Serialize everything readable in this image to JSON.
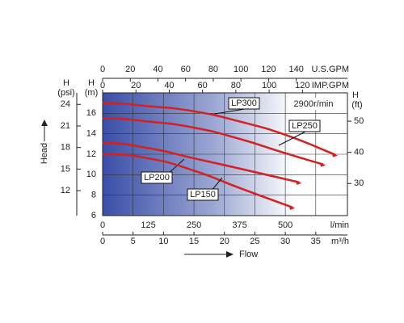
{
  "chart_data": {
    "type": "line",
    "x_label": "Flow",
    "y_label": "Head",
    "annotation": "2900r/min",
    "x_unit": "l/min",
    "xlim": [
      0,
      670
    ],
    "xticks": [
      0,
      125,
      250,
      375,
      500
    ],
    "y_title": "H",
    "y_unit": "(m)",
    "ylim": [
      6,
      18
    ],
    "yticks": [
      6,
      8,
      10,
      12,
      14,
      16
    ],
    "grid": true,
    "axes": {
      "m3h": {
        "label": "m³/h",
        "xlim": [
          0,
          40.2
        ],
        "xticks": [
          0,
          5,
          10,
          15,
          20,
          25,
          30,
          35
        ]
      },
      "usgpm": {
        "label": "U.S.GPM",
        "xlim": [
          0,
          177
        ],
        "xticks": [
          0,
          20,
          40,
          60,
          80,
          100,
          120,
          140
        ]
      },
      "impgpm": {
        "label": "IMP.GPM",
        "xlim": [
          0,
          147
        ],
        "xticks": [
          0,
          20,
          40,
          60,
          80,
          100,
          120
        ]
      },
      "psi": {
        "title": "H",
        "unit": "(psi)",
        "ylim": [
          8.53,
          25.6
        ],
        "yticks": [
          12,
          15,
          18,
          21,
          24
        ]
      },
      "ft": {
        "title": "H",
        "unit": "(ft)",
        "ylim": [
          19.7,
          59.1
        ],
        "yticks": [
          30,
          40,
          50
        ]
      }
    },
    "series": [
      {
        "name": "LP300",
        "color": "#d42020",
        "x": [
          0,
          125,
          250,
          375,
          500,
          637
        ],
        "values": [
          17.0,
          16.7,
          16.2,
          15.2,
          13.9,
          11.95
        ]
      },
      {
        "name": "LP250",
        "color": "#d42020",
        "x": [
          0,
          125,
          250,
          375,
          500,
          604
        ],
        "values": [
          15.5,
          15.2,
          14.6,
          13.5,
          12.1,
          11.0
        ]
      },
      {
        "name": "LP200",
        "color": "#d42020",
        "x": [
          0,
          125,
          250,
          375,
          538
        ],
        "values": [
          13.1,
          12.6,
          11.6,
          10.6,
          9.25
        ]
      },
      {
        "name": "LP150",
        "color": "#d42020",
        "x": [
          0,
          125,
          250,
          375,
          520
        ],
        "values": [
          12.0,
          11.6,
          10.4,
          8.7,
          6.8
        ]
      }
    ]
  }
}
